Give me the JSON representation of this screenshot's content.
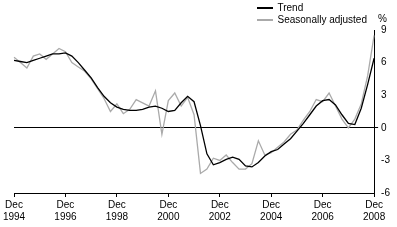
{
  "chart_data": {
    "type": "line",
    "y_label": "%",
    "categories": [
      "Dec 1994",
      null,
      null,
      null,
      null,
      null,
      null,
      null,
      "Dec 1996",
      null,
      null,
      null,
      null,
      null,
      null,
      null,
      "Dec 1998",
      null,
      null,
      null,
      null,
      null,
      null,
      null,
      "Dec 2000",
      null,
      null,
      null,
      null,
      null,
      null,
      null,
      "Dec 2002",
      null,
      null,
      null,
      null,
      null,
      null,
      null,
      "Dec 2004",
      null,
      null,
      null,
      null,
      null,
      null,
      null,
      "Dec 2006",
      null,
      null,
      null,
      null,
      null,
      null,
      null,
      "Dec 2008"
    ],
    "series": [
      {
        "name": "Trend",
        "color": "#000000",
        "values": [
          6.2,
          6.1,
          6.0,
          6.2,
          6.4,
          6.6,
          6.8,
          6.8,
          6.9,
          6.6,
          6.0,
          5.3,
          4.6,
          3.7,
          2.9,
          2.3,
          1.9,
          1.7,
          1.6,
          1.6,
          1.7,
          1.9,
          2.0,
          1.8,
          1.5,
          1.6,
          2.3,
          2.9,
          2.4,
          0.2,
          -2.4,
          -3.4,
          -3.2,
          -2.9,
          -2.7,
          -2.9,
          -3.5,
          -3.6,
          -3.2,
          -2.6,
          -2.2,
          -2.0,
          -1.5,
          -1.0,
          -0.3,
          0.4,
          1.2,
          2.0,
          2.5,
          2.6,
          2.1,
          1.2,
          0.4,
          0.3,
          1.8,
          4.0,
          6.4
        ]
      },
      {
        "name": "Seasonally adjusted",
        "color": "#aaaaaa",
        "values": [
          6.5,
          6.0,
          5.5,
          6.6,
          6.8,
          6.3,
          6.8,
          7.3,
          7.0,
          6.0,
          5.6,
          5.2,
          4.5,
          3.6,
          2.7,
          1.5,
          2.2,
          1.3,
          1.7,
          2.6,
          2.3,
          2.0,
          3.4,
          -0.6,
          2.5,
          3.2,
          2.0,
          2.8,
          1.2,
          -4.2,
          -3.8,
          -2.8,
          -3.0,
          -2.5,
          -3.2,
          -3.8,
          -3.8,
          -3.3,
          -1.2,
          -2.5,
          -2.3,
          -1.8,
          -1.3,
          -0.6,
          -0.2,
          0.7,
          1.5,
          2.6,
          2.4,
          3.2,
          2.0,
          0.8,
          0.0,
          0.8,
          2.2,
          4.8,
          8.5
        ]
      }
    ],
    "ylim": [
      -6,
      9
    ],
    "yticks": [
      -6,
      -3,
      0,
      3,
      6,
      9
    ],
    "grid": false,
    "legend": "top-right"
  }
}
